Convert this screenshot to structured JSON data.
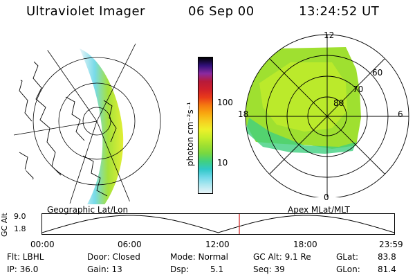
{
  "header": {
    "instrument": "Ultraviolet Imager",
    "date": "06 Sep 00",
    "time": "13:24:52 UT"
  },
  "colorbar": {
    "ticks": [
      "100",
      "10"
    ],
    "unit_label": "photon cm⁻²s⁻¹",
    "colors": [
      "#000000",
      "#30107a",
      "#8a2aa0",
      "#b81a3a",
      "#d0202a",
      "#e83a1a",
      "#f57a10",
      "#f8a810",
      "#f6d020",
      "#eef02a",
      "#c8ee2a",
      "#a0e030",
      "#78d840",
      "#40d080",
      "#30c8c8",
      "#70d8e8",
      "#b0e8f0",
      "#e8f4f8"
    ]
  },
  "left_map": {
    "caption": "Geographic Lat/Lon"
  },
  "right_map": {
    "caption": "Apex MLat/MLT",
    "mlt_labels": {
      "top": "12",
      "left": "18",
      "right": "6",
      "bottom": "0"
    },
    "lat_labels": [
      "60",
      "70",
      "80"
    ]
  },
  "altitude_plot": {
    "ylabel": "GC Alt",
    "y_ticks": [
      "9.0",
      "1.8"
    ],
    "x_ticks": [
      "00:00",
      "06:00",
      "12:00",
      "18:00",
      "23:59"
    ],
    "current_time_fraction": 0.56
  },
  "status": {
    "flt": "Flt: LBHL",
    "ip": "IP: 36.0",
    "door": "Door: Closed",
    "gain": "Gain: 13",
    "mode": "Mode: Normal",
    "dsp": "Dsp:",
    "dsp_value": "5.1",
    "gc_alt": "GC Alt: 9.1 Re",
    "seq": "Seq: 39",
    "glat": "GLat:",
    "glat_value": "83.8",
    "glon": "GLon:",
    "glon_value": "81.4"
  }
}
